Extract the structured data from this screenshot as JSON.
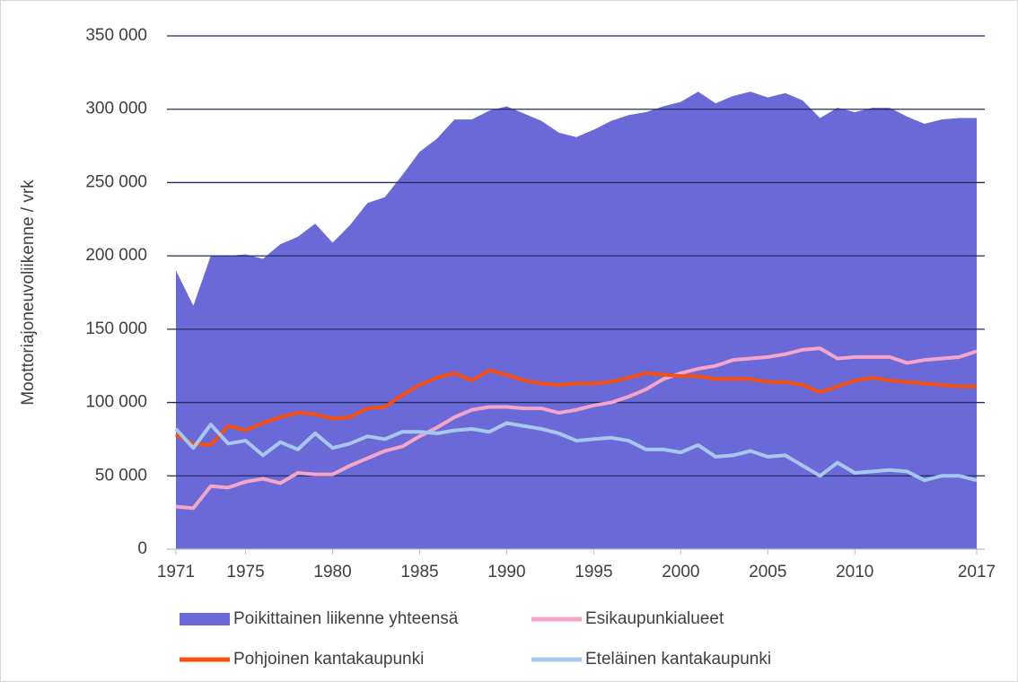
{
  "chart_data": {
    "type": "line",
    "ylabel": "Moottoriajoneuvoliikenne / vrk",
    "x": [
      1971,
      1972,
      1973,
      1974,
      1975,
      1976,
      1977,
      1978,
      1979,
      1980,
      1981,
      1982,
      1983,
      1984,
      1985,
      1986,
      1987,
      1988,
      1989,
      1990,
      1991,
      1992,
      1993,
      1994,
      1995,
      1996,
      1997,
      1998,
      1999,
      2000,
      2001,
      2002,
      2003,
      2004,
      2005,
      2006,
      2007,
      2008,
      2009,
      2010,
      2011,
      2012,
      2013,
      2014,
      2015,
      2016,
      2017
    ],
    "xlim": [
      1971,
      2017
    ],
    "xticks": [
      1971,
      1975,
      1980,
      1985,
      1990,
      1995,
      2000,
      2005,
      2010,
      2017
    ],
    "ylim": [
      0,
      350000
    ],
    "yticks": [
      {
        "value": 0,
        "label": "0"
      },
      {
        "value": 50000,
        "label": "50 000"
      },
      {
        "value": 100000,
        "label": "100 000"
      },
      {
        "value": 150000,
        "label": "150 000"
      },
      {
        "value": 200000,
        "label": "200 000"
      },
      {
        "value": 250000,
        "label": "250 000"
      },
      {
        "value": 300000,
        "label": "300 000"
      },
      {
        "value": 350000,
        "label": "350 000"
      }
    ],
    "grid": true,
    "series": [
      {
        "name": "Poikittainen liikenne yhteensä",
        "color": "#6b69d8",
        "area": true,
        "values": [
          190000,
          166000,
          200000,
          200000,
          201000,
          198000,
          208000,
          213000,
          222000,
          209000,
          221000,
          236000,
          240000,
          255000,
          271000,
          280000,
          293000,
          293000,
          299000,
          302000,
          297000,
          292000,
          284000,
          281000,
          286000,
          292000,
          296000,
          298000,
          302000,
          305000,
          312000,
          304000,
          309000,
          312000,
          308000,
          311000,
          306000,
          294000,
          301000,
          298000,
          301000,
          301000,
          295000,
          290000,
          293000,
          294000,
          294000
        ]
      },
      {
        "name": "Esikaupunkialueet",
        "color": "#f4a6c9",
        "values": [
          29000,
          28000,
          43000,
          42000,
          46000,
          48000,
          45000,
          52000,
          51000,
          51000,
          57000,
          62000,
          67000,
          70000,
          77000,
          83000,
          90000,
          95000,
          97000,
          97000,
          96000,
          96000,
          93000,
          95000,
          98000,
          100000,
          104000,
          109000,
          116000,
          120000,
          123000,
          125000,
          129000,
          130000,
          131000,
          133000,
          136000,
          137000,
          130000,
          131000,
          131000,
          131000,
          127000,
          129000,
          130000,
          131000,
          135000
        ]
      },
      {
        "name": "Pohjoinen kantakaupunki",
        "color": "#f5500f",
        "values": [
          78000,
          72000,
          71000,
          84000,
          81000,
          86000,
          90000,
          93000,
          92000,
          89000,
          90000,
          96000,
          97000,
          105000,
          112000,
          117000,
          120000,
          115000,
          122000,
          119000,
          115000,
          113000,
          112000,
          113000,
          113000,
          114000,
          117000,
          120000,
          119000,
          118000,
          118000,
          116000,
          116000,
          116000,
          114000,
          114000,
          112000,
          107000,
          111000,
          115000,
          117000,
          115000,
          114000,
          113000,
          112000,
          111000,
          111000
        ]
      },
      {
        "name": "Eteläinen kantakaupunki",
        "color": "#a6c8ec",
        "values": [
          82000,
          69000,
          85000,
          72000,
          74000,
          64000,
          73000,
          68000,
          79000,
          69000,
          72000,
          77000,
          75000,
          80000,
          80000,
          79000,
          81000,
          82000,
          80000,
          86000,
          84000,
          82000,
          79000,
          74000,
          75000,
          76000,
          74000,
          68000,
          68000,
          66000,
          71000,
          63000,
          64000,
          67000,
          63000,
          64000,
          57000,
          50000,
          59000,
          52000,
          53000,
          54000,
          53000,
          47000,
          50000,
          50000,
          47000
        ]
      }
    ]
  }
}
